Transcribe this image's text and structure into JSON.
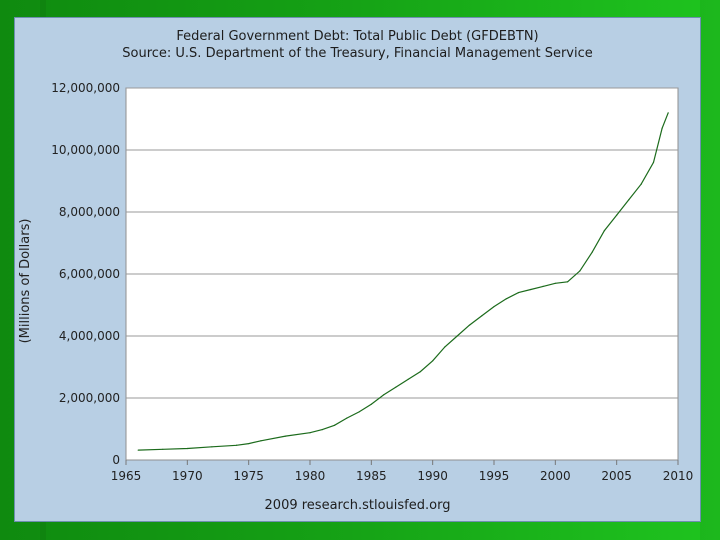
{
  "chart_data": {
    "type": "line",
    "title": "Federal Government Debt: Total Public Debt (GFDEBTN)",
    "subtitle": "Source: U.S. Department of the Treasury, Financial Management Service",
    "footer": "2009 research.stlouisfed.org",
    "ylabel": "(Millions of Dollars)",
    "xlabel": "",
    "xlim": [
      1965,
      2010
    ],
    "ylim": [
      0,
      12000000
    ],
    "grid": true,
    "x_ticks": [
      "1965",
      "1970",
      "1975",
      "1980",
      "1985",
      "1990",
      "1995",
      "2000",
      "2005",
      "2010"
    ],
    "y_ticks": [
      "0",
      "2,000,000",
      "4,000,000",
      "6,000,000",
      "8,000,000",
      "10,000,000",
      "12,000,000"
    ],
    "series": [
      {
        "color": "#1c6b1c",
        "x": [
          1966,
          1968,
          1970,
          1972,
          1974,
          1975,
          1976,
          1978,
          1980,
          1981,
          1982,
          1983,
          1984,
          1985,
          1986,
          1987,
          1988,
          1989,
          1990,
          1991,
          1992,
          1993,
          1994,
          1995,
          1996,
          1997,
          1998,
          1999,
          2000,
          2001,
          2002,
          2003,
          2004,
          2005,
          2006,
          2007,
          2008,
          2008.7,
          2009.2
        ],
        "y": [
          320000,
          345000,
          370000,
          425000,
          475000,
          530000,
          620000,
          770000,
          880000,
          980000,
          1120000,
          1350000,
          1550000,
          1800000,
          2100000,
          2350000,
          2600000,
          2850000,
          3200000,
          3650000,
          4000000,
          4350000,
          4650000,
          4950000,
          5200000,
          5400000,
          5500000,
          5600000,
          5700000,
          5750000,
          6100000,
          6700000,
          7400000,
          7900000,
          8400000,
          8900000,
          9600000,
          10700000,
          11200000
        ]
      }
    ]
  }
}
